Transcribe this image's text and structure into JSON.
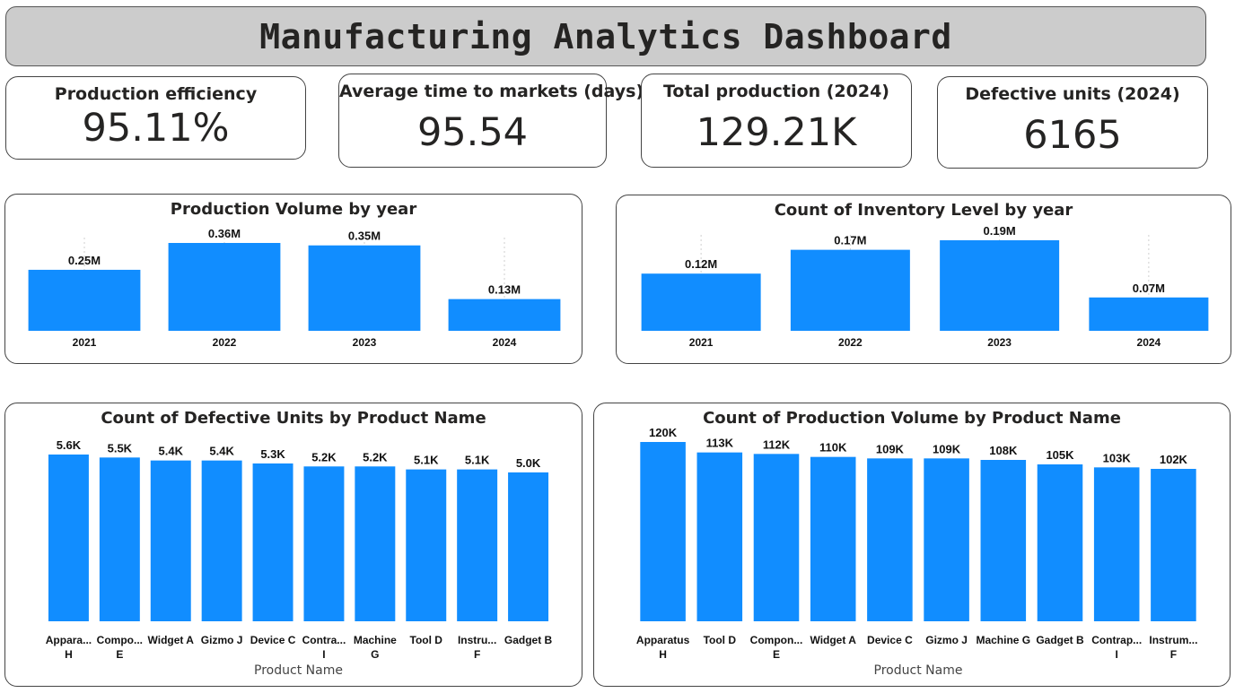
{
  "header": {
    "title": "Manufacturing Analytics Dashboard"
  },
  "kpis": [
    {
      "label": "Production efficiency",
      "value": "95.11%"
    },
    {
      "label": "Average time to markets (days)",
      "value": "95.54"
    },
    {
      "label": "Total production (2024)",
      "value": "129.21K"
    },
    {
      "label": "Defective units (2024)",
      "value": "6165"
    }
  ],
  "colors": {
    "bar": "#118DFF",
    "header_bg": "#CCCCCC"
  },
  "chart_data": [
    {
      "type": "bar",
      "title": "Production Volume by year",
      "categories": [
        "2021",
        "2022",
        "2023",
        "2024"
      ],
      "values": [
        0.25,
        0.36,
        0.35,
        0.13
      ],
      "value_labels": [
        "0.25M",
        "0.36M",
        "0.35M",
        "0.13M"
      ],
      "unit": "M",
      "xlabel": "",
      "ylabel": "",
      "ylim": [
        0,
        0.36
      ],
      "grid": false
    },
    {
      "type": "bar",
      "title": "Count of Inventory Level by year",
      "categories": [
        "2021",
        "2022",
        "2023",
        "2024"
      ],
      "values": [
        0.12,
        0.17,
        0.19,
        0.07
      ],
      "value_labels": [
        "0.12M",
        "0.17M",
        "0.19M",
        "0.07M"
      ],
      "unit": "M",
      "xlabel": "",
      "ylabel": "",
      "ylim": [
        0,
        0.19
      ],
      "grid": false
    },
    {
      "type": "bar",
      "title": "Count of Defective Units by Product Name",
      "categories": [
        [
          "Appara...",
          "H"
        ],
        [
          "Compo...",
          "E"
        ],
        [
          "Widget A"
        ],
        [
          "Gizmo J"
        ],
        [
          "Device C"
        ],
        [
          "Contra...",
          "I"
        ],
        [
          "Machine",
          "G"
        ],
        [
          "Tool D"
        ],
        [
          "Instru...",
          "F"
        ],
        [
          "Gadget B"
        ]
      ],
      "values": [
        5.6,
        5.5,
        5.4,
        5.4,
        5.3,
        5.2,
        5.2,
        5.1,
        5.1,
        5.0
      ],
      "value_labels": [
        "5.6K",
        "5.5K",
        "5.4K",
        "5.4K",
        "5.3K",
        "5.2K",
        "5.2K",
        "5.1K",
        "5.1K",
        "5.0K"
      ],
      "unit": "K",
      "xlabel": "Product Name",
      "ylabel": "",
      "ylim": [
        0,
        5.6
      ],
      "grid": false
    },
    {
      "type": "bar",
      "title": "Count of Production Volume by Product Name",
      "categories": [
        [
          "Apparatus",
          "H"
        ],
        [
          "Tool D"
        ],
        [
          "Compon...",
          "E"
        ],
        [
          "Widget A"
        ],
        [
          "Device C"
        ],
        [
          "Gizmo J"
        ],
        [
          "Machine G"
        ],
        [
          "Gadget B"
        ],
        [
          "Contrap...",
          "I"
        ],
        [
          "Instrum...",
          "F"
        ]
      ],
      "values": [
        120,
        113,
        112,
        110,
        109,
        109,
        108,
        105,
        103,
        102
      ],
      "value_labels": [
        "120K",
        "113K",
        "112K",
        "110K",
        "109K",
        "109K",
        "108K",
        "105K",
        "103K",
        "102K"
      ],
      "unit": "K",
      "xlabel": "Product Name",
      "ylabel": "",
      "ylim": [
        0,
        120
      ],
      "grid": false
    }
  ]
}
